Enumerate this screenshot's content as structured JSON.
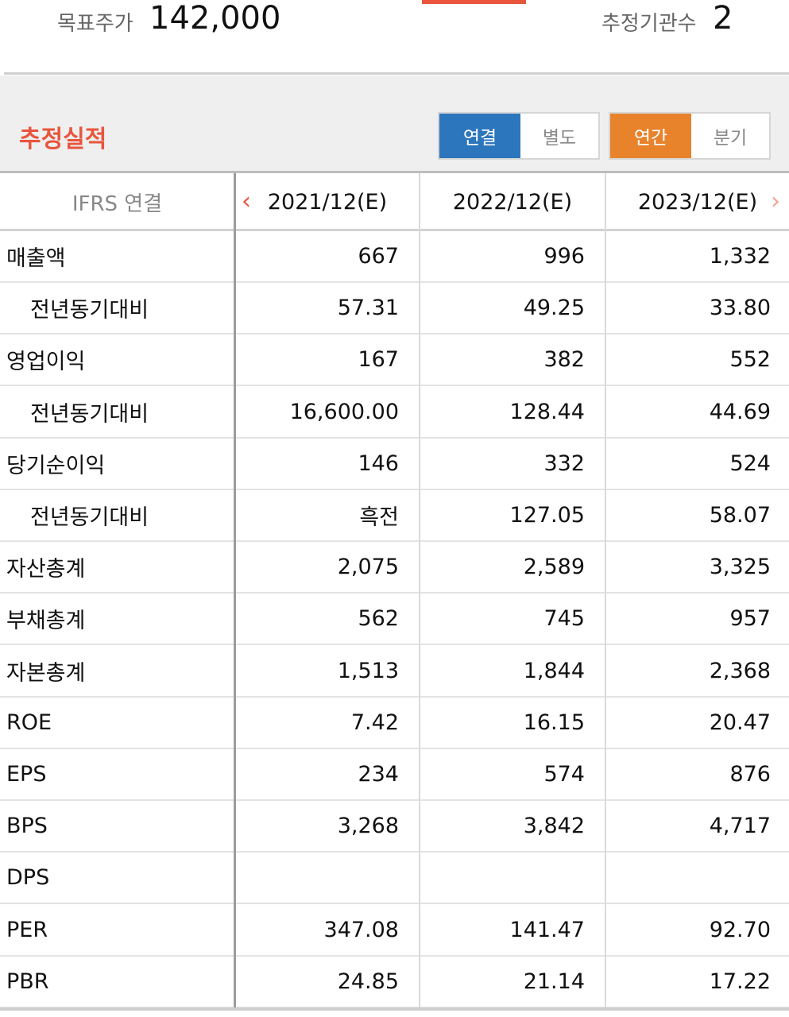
{
  "summary": {
    "target_price_label": "목표주가",
    "target_price_value": "142,000",
    "analyst_count_label": "추정기관수",
    "analyst_count_value": "2"
  },
  "section": {
    "title": "추정실적"
  },
  "toggles": {
    "basis": [
      {
        "label": "연결",
        "active": true
      },
      {
        "label": "별도",
        "active": false
      }
    ],
    "period": [
      {
        "label": "연간",
        "active": true
      },
      {
        "label": "분기",
        "active": false
      }
    ]
  },
  "table": {
    "header_label": "IFRS 연결",
    "columns": [
      "2021/12(E)",
      "2022/12(E)",
      "2023/12(E)"
    ],
    "rows": [
      {
        "name": "매출액",
        "indent": false,
        "values": [
          "667",
          "996",
          "1,332"
        ]
      },
      {
        "name": "전년동기대비",
        "indent": true,
        "values": [
          "57.31",
          "49.25",
          "33.80"
        ]
      },
      {
        "name": "영업이익",
        "indent": false,
        "values": [
          "167",
          "382",
          "552"
        ]
      },
      {
        "name": "전년동기대비",
        "indent": true,
        "values": [
          "16,600.00",
          "128.44",
          "44.69"
        ]
      },
      {
        "name": "당기순이익",
        "indent": false,
        "values": [
          "146",
          "332",
          "524"
        ]
      },
      {
        "name": "전년동기대비",
        "indent": true,
        "values": [
          "흑전",
          "127.05",
          "58.07"
        ]
      },
      {
        "name": "자산총계",
        "indent": false,
        "values": [
          "2,075",
          "2,589",
          "3,325"
        ]
      },
      {
        "name": "부채총계",
        "indent": false,
        "values": [
          "562",
          "745",
          "957"
        ]
      },
      {
        "name": "자본총계",
        "indent": false,
        "values": [
          "1,513",
          "1,844",
          "2,368"
        ]
      },
      {
        "name": "ROE",
        "indent": false,
        "values": [
          "7.42",
          "16.15",
          "20.47"
        ]
      },
      {
        "name": "EPS",
        "indent": false,
        "values": [
          "234",
          "574",
          "876"
        ]
      },
      {
        "name": "BPS",
        "indent": false,
        "values": [
          "3,268",
          "3,842",
          "4,717"
        ]
      },
      {
        "name": "DPS",
        "indent": false,
        "values": [
          "",
          "",
          ""
        ]
      },
      {
        "name": "PER",
        "indent": false,
        "values": [
          "347.08",
          "141.47",
          "92.70"
        ]
      },
      {
        "name": "PBR",
        "indent": false,
        "values": [
          "24.85",
          "21.14",
          "17.22"
        ]
      }
    ]
  },
  "icons": {
    "prev": "chevron-left-icon",
    "next": "chevron-right-icon",
    "prev_glyph": "‹",
    "next_glyph": "›"
  },
  "colors": {
    "accent": "#e8553c",
    "blue_active": "#2c76bd",
    "orange_active": "#e8832c"
  }
}
